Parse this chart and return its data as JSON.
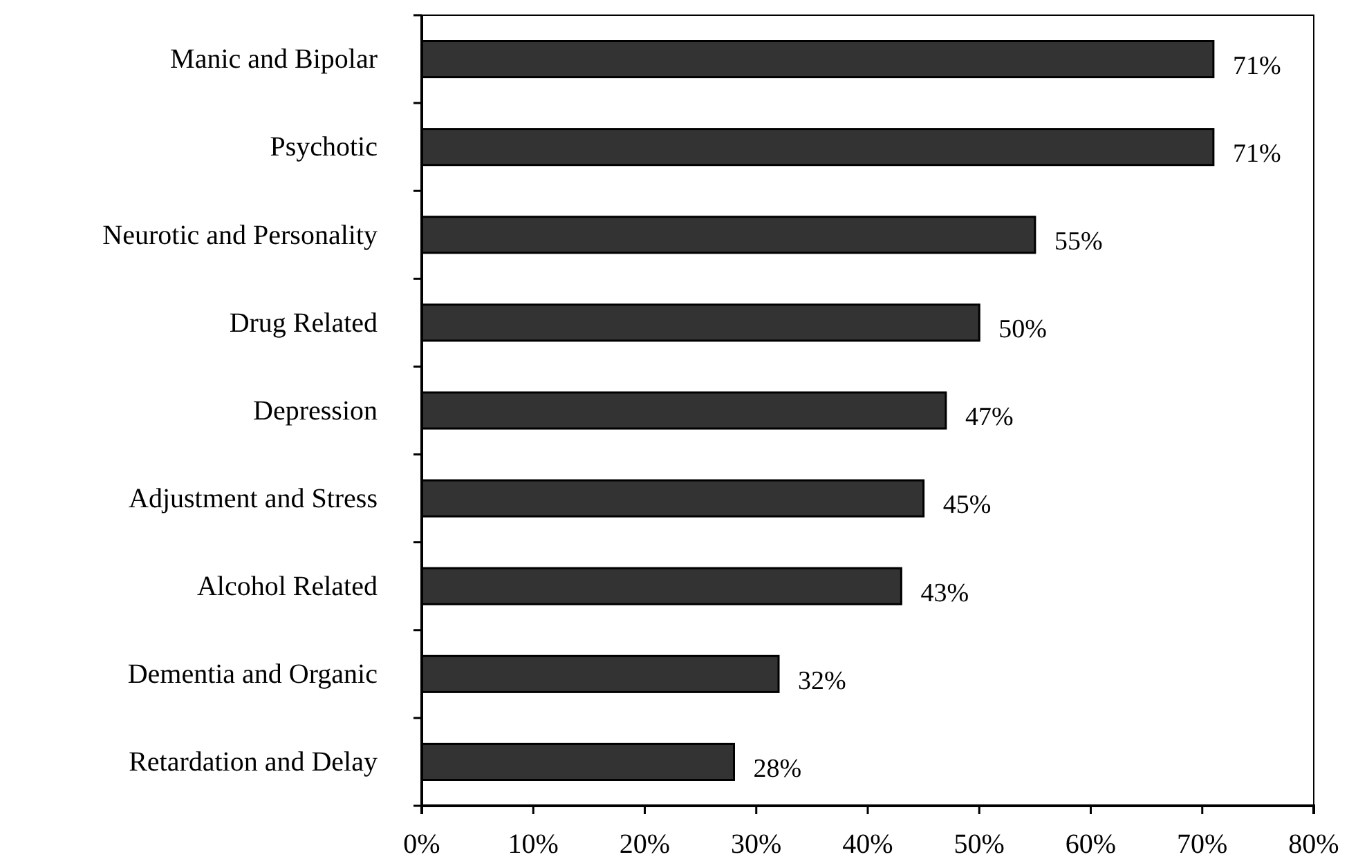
{
  "chart_data": {
    "type": "bar",
    "orientation": "horizontal",
    "categories": [
      "Manic and Bipolar",
      "Psychotic",
      "Neurotic and Personality",
      "Drug Related",
      "Depression",
      "Adjustment and Stress",
      "Alcohol Related",
      "Dementia and Organic",
      "Retardation and Delay"
    ],
    "values": [
      71,
      71,
      55,
      50,
      47,
      45,
      43,
      32,
      28
    ],
    "value_labels": [
      "71%",
      "71%",
      "55%",
      "50%",
      "47%",
      "45%",
      "43%",
      "32%",
      "28%"
    ],
    "color": "#333333",
    "xlim": [
      0,
      80
    ],
    "xticks": [
      {
        "value": 0,
        "label": "0%"
      },
      {
        "value": 10,
        "label": "10%"
      },
      {
        "value": 20,
        "label": "20%"
      },
      {
        "value": 30,
        "label": "30%"
      },
      {
        "value": 40,
        "label": "40%"
      },
      {
        "value": 50,
        "label": "50%"
      },
      {
        "value": 60,
        "label": "60%"
      },
      {
        "value": 70,
        "label": "70%"
      },
      {
        "value": 80,
        "label": "80%"
      }
    ]
  }
}
